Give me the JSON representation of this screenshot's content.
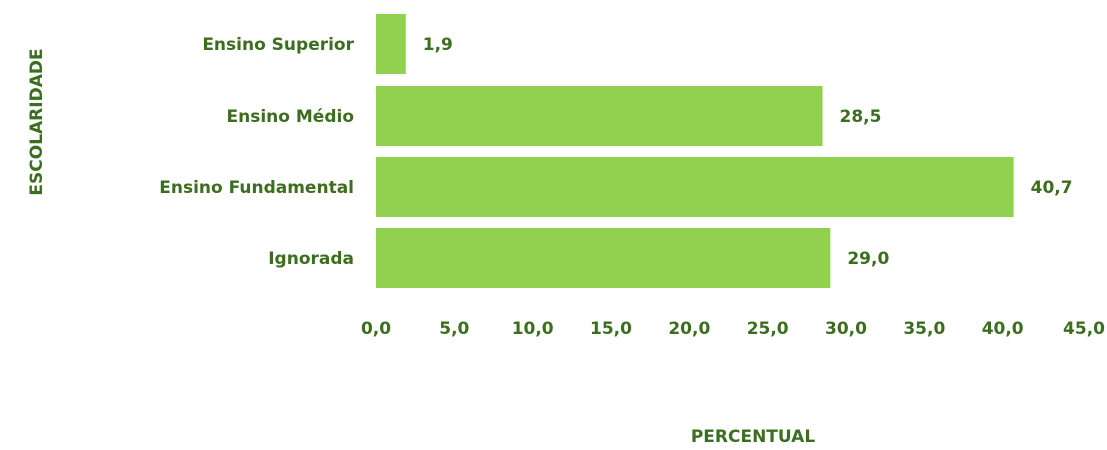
{
  "chart_data": {
    "type": "bar",
    "orientation": "horizontal",
    "categories": [
      "Ensino Superior",
      "Ensino Médio",
      "Ensino Fundamental",
      "Ignorada"
    ],
    "values": [
      1.9,
      28.5,
      40.7,
      29.0
    ],
    "value_labels": [
      "1,9",
      "28,5",
      "40,7",
      "29,0"
    ],
    "xlabel": "PERCENTUAL",
    "ylabel": "ESCOLARIDADE",
    "xlim": [
      0,
      45
    ],
    "x_ticks": [
      0,
      5,
      10,
      15,
      20,
      25,
      30,
      35,
      40,
      45
    ],
    "x_tick_labels": [
      "0,0",
      "5,0",
      "10,0",
      "15,0",
      "20,0",
      "25,0",
      "30,0",
      "35,0",
      "40,0",
      "45,0"
    ],
    "grid": false,
    "legend": "none"
  },
  "colors": {
    "bar": "#92d050",
    "text": "#3c6e1f"
  }
}
